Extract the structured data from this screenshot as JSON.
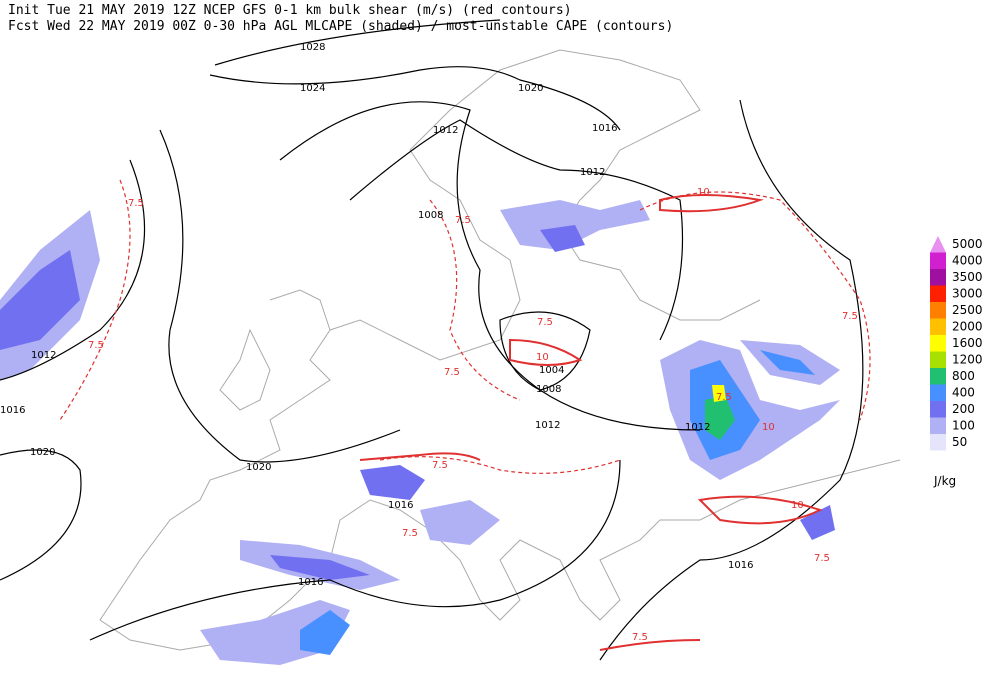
{
  "header": {
    "line1": "Init  Tue 21 MAY 2019 12Z  NCEP GFS 0-1 km bulk shear (m/s) (red contours)",
    "line2": "Fcst Wed 22 MAY 2019 00Z  0-30 hPa AGL MLCAPE (shaded) / most-unstable CAPE (contours)"
  },
  "legend": {
    "unit": "J/kg",
    "items": [
      {
        "label": 5000,
        "color": "#e890f0"
      },
      {
        "label": 4000,
        "color": "#d020d0"
      },
      {
        "label": 3500,
        "color": "#a010a0"
      },
      {
        "label": 3000,
        "color": "#ff2000"
      },
      {
        "label": 2500,
        "color": "#ff8000"
      },
      {
        "label": 2000,
        "color": "#ffc000"
      },
      {
        "label": 1600,
        "color": "#ffff00"
      },
      {
        "label": 1200,
        "color": "#a8e000"
      },
      {
        "label": 800,
        "color": "#20c070"
      },
      {
        "label": 400,
        "color": "#4890ff"
      },
      {
        "label": 200,
        "color": "#7070f0"
      },
      {
        "label": 100,
        "color": "#b0b0f4"
      },
      {
        "label": 50,
        "color": "#e4e4fa"
      }
    ]
  },
  "isobar_labels": [
    1028,
    1024,
    1020,
    1016,
    1012,
    1012,
    1008,
    1012,
    1016,
    1020,
    1020,
    1004,
    1008,
    1012,
    1012,
    1016,
    1016,
    1016
  ],
  "shear_labels": [
    7.5,
    7.5,
    7.5,
    7.5,
    7.5,
    7.5,
    7.5,
    7.5,
    7.5,
    7.5,
    7.5,
    10,
    10,
    10,
    10
  ]
}
